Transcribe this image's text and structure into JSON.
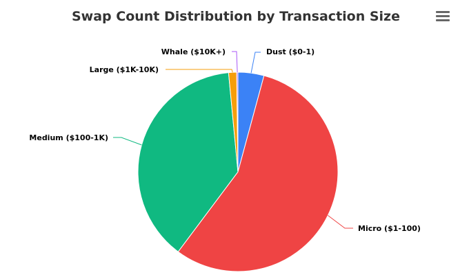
{
  "chart_data": {
    "type": "pie",
    "title": "Swap Count Distribution by Transaction Size",
    "series": [
      {
        "name": "Dust ($0-1)",
        "value": 4.2,
        "color": "#3b82f6"
      },
      {
        "name": "Micro ($1-100)",
        "value": 56.0,
        "color": "#ef4444"
      },
      {
        "name": "Medium ($100-1K)",
        "value": 38.3,
        "color": "#10b981"
      },
      {
        "name": "Large ($1K-10K)",
        "value": 1.3,
        "color": "#f59e0b"
      },
      {
        "name": "Whale ($10K+)",
        "value": 0.2,
        "color": "#a855f7"
      }
    ],
    "legend": "none",
    "start_angle": "top"
  },
  "menu_icon": "hamburger-menu-icon"
}
